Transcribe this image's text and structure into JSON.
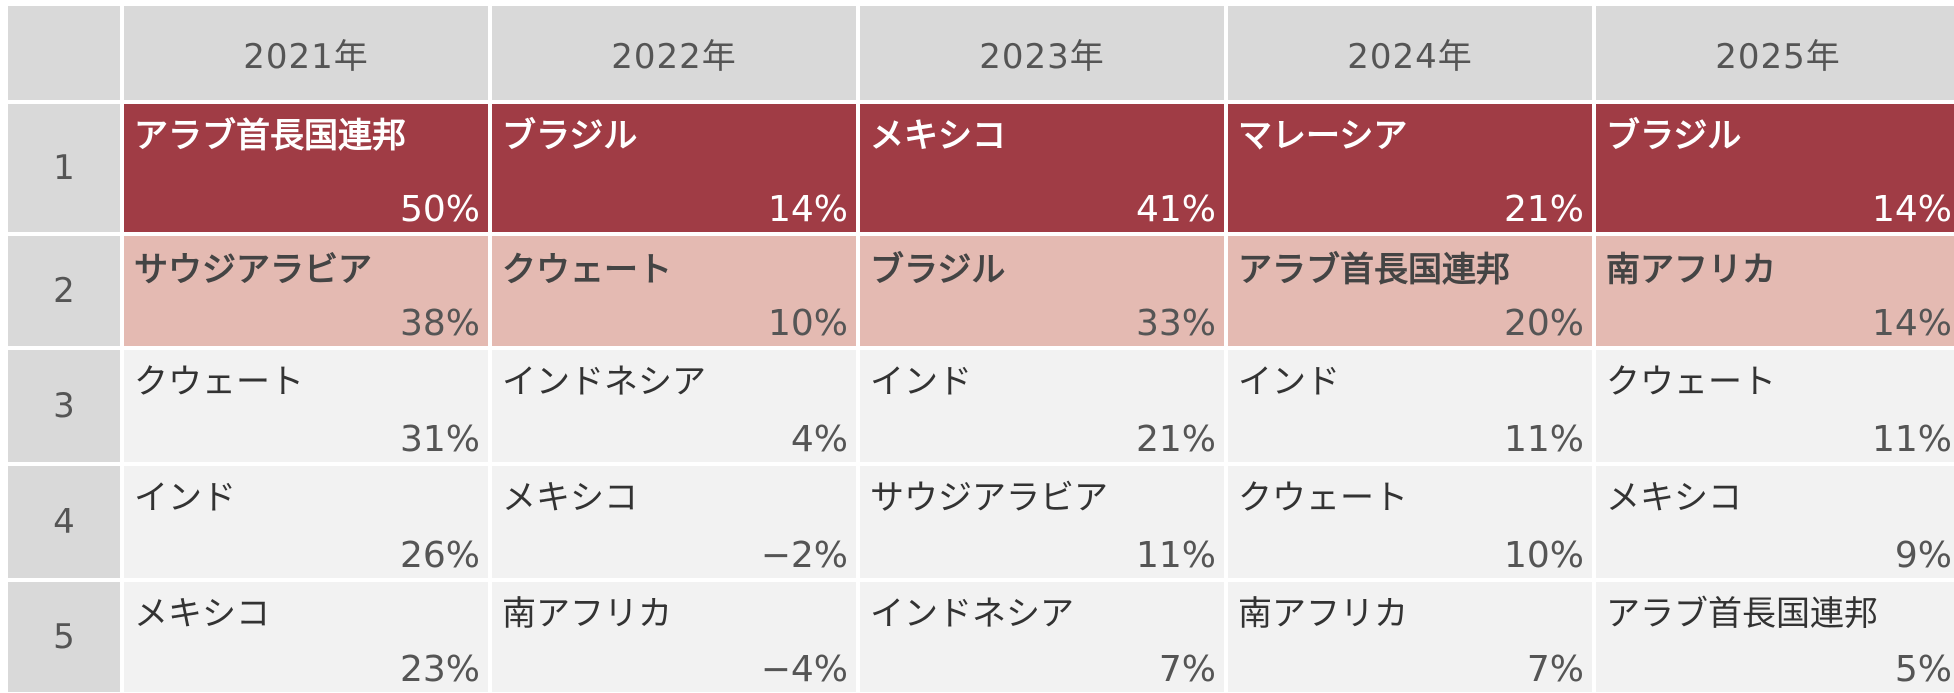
{
  "chart_data": {
    "type": "table",
    "columns": [
      "2021年",
      "2022年",
      "2023年",
      "2024年",
      "2025年"
    ],
    "ranks": [
      "1",
      "2",
      "3",
      "4",
      "5"
    ],
    "rows": [
      [
        {
          "country": "アラブ首長国連邦",
          "value": "50%"
        },
        {
          "country": "ブラジル",
          "value": "14%"
        },
        {
          "country": "メキシコ",
          "value": "41%"
        },
        {
          "country": "マレーシア",
          "value": "21%"
        },
        {
          "country": "ブラジル",
          "value": "14%"
        }
      ],
      [
        {
          "country": "サウジアラビア",
          "value": "38%"
        },
        {
          "country": "クウェート",
          "value": "10%"
        },
        {
          "country": "ブラジル",
          "value": "33%"
        },
        {
          "country": "アラブ首長国連邦",
          "value": "20%"
        },
        {
          "country": "南アフリカ",
          "value": "14%"
        }
      ],
      [
        {
          "country": "クウェート",
          "value": "31%"
        },
        {
          "country": "インドネシア",
          "value": "4%"
        },
        {
          "country": "インド",
          "value": "21%"
        },
        {
          "country": "インド",
          "value": "11%"
        },
        {
          "country": "クウェート",
          "value": "11%"
        }
      ],
      [
        {
          "country": "インド",
          "value": "26%"
        },
        {
          "country": "メキシコ",
          "value": "−2%"
        },
        {
          "country": "サウジアラビア",
          "value": "11%"
        },
        {
          "country": "クウェート",
          "value": "10%"
        },
        {
          "country": "メキシコ",
          "value": "9%"
        }
      ],
      [
        {
          "country": "メキシコ",
          "value": "23%"
        },
        {
          "country": "南アフリカ",
          "value": "−4%"
        },
        {
          "country": "インドネシア",
          "value": "7%"
        },
        {
          "country": "南アフリカ",
          "value": "7%"
        },
        {
          "country": "アラブ首長国連邦",
          "value": "5%"
        }
      ]
    ],
    "colors": {
      "rank1_fill": "#a03c45",
      "rank2_fill": "#e4bab2",
      "other_fill": "#f2f2f2",
      "header_fill": "#d9d9d9"
    }
  }
}
